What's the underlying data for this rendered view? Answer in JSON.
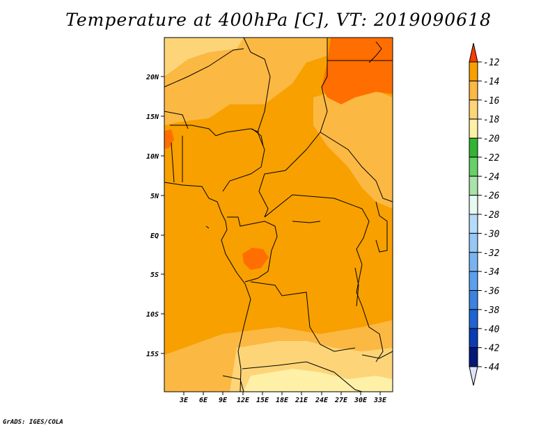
{
  "title": "Temperature at 400hPa [C], VT: 2019090618",
  "credit": "GrADS: IGES/COLA",
  "map": {
    "lat_labels": [
      "20N",
      "15N",
      "10N",
      "5N",
      "EQ",
      "5S",
      "10S",
      "15S"
    ],
    "lon_labels": [
      "3E",
      "6E",
      "9E",
      "12E",
      "15E",
      "18E",
      "21E",
      "24E",
      "27E",
      "30E",
      "33E"
    ],
    "colors": {
      "background_field": "#f7a000",
      "warm_patch": "#ff6e00",
      "cool_patch": "#fbb843",
      "cooler_patch": "#fdd578",
      "coolest_patch": "#fef0a6",
      "border": "#000000"
    }
  },
  "colorbar": {
    "labels": [
      "-12",
      "-14",
      "-16",
      "-18",
      "-20",
      "-22",
      "-24",
      "-26",
      "-28",
      "-30",
      "-32",
      "-34",
      "-36",
      "-38",
      "-40",
      "-42",
      "-44"
    ],
    "colors": [
      "#ff6e00",
      "#f7a000",
      "#fbb843",
      "#fdd578",
      "#fef0a6",
      "#33b333",
      "#66d166",
      "#a8e3a8",
      "#e6faf2",
      "#b4dcfa",
      "#96c8f5",
      "#78b4f0",
      "#5aa0eb",
      "#3c82e1",
      "#1e64d2",
      "#0a3cb4",
      "#051878"
    ],
    "top_arrow_color": "#ff3c00",
    "bottom_arrow_color": "#dde4f7"
  }
}
